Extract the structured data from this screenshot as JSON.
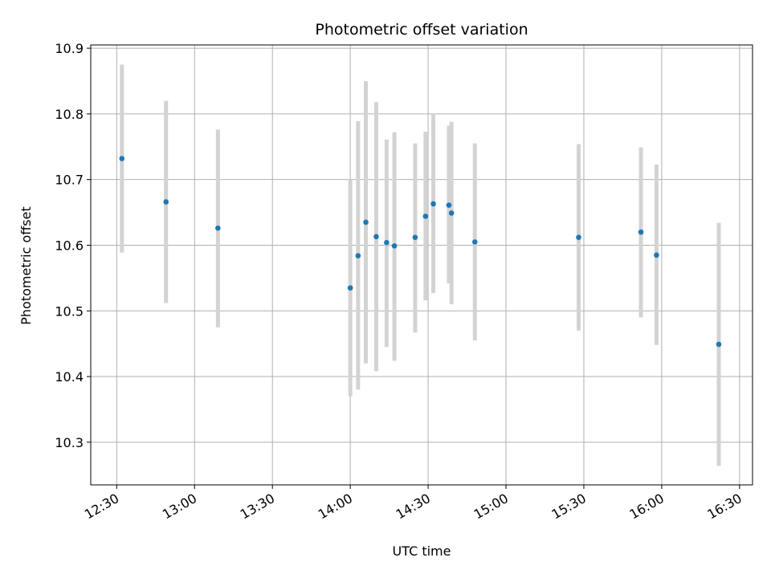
{
  "chart_data": {
    "type": "scatter",
    "title": "Photometric offset variation",
    "xlabel": "UTC time",
    "ylabel": "Photometric offset",
    "xlim": [
      "12:20",
      "16:35"
    ],
    "ylim": [
      10.235,
      10.905
    ],
    "grid": true,
    "x_ticks": [
      "12:30",
      "13:00",
      "13:30",
      "14:00",
      "14:30",
      "15:00",
      "15:30",
      "16:00",
      "16:30"
    ],
    "y_ticks": [
      "10.3",
      "10.4",
      "10.5",
      "10.6",
      "10.7",
      "10.8",
      "10.9"
    ],
    "colors": {
      "point": "#1f77b4",
      "errorbar": "#d3d3d3",
      "grid": "#b0b0b0",
      "axis": "#000000"
    },
    "series": [
      {
        "name": "Photometric offset",
        "x": [
          "12:32",
          "12:49",
          "13:09",
          "14:00",
          "14:03",
          "14:06",
          "14:10",
          "14:14",
          "14:17",
          "14:25",
          "14:29",
          "14:32",
          "14:38",
          "14:39",
          "14:48",
          "15:28",
          "15:52",
          "15:58",
          "16:22"
        ],
        "y": [
          10.732,
          10.666,
          10.626,
          10.535,
          10.584,
          10.635,
          10.613,
          10.604,
          10.599,
          10.612,
          10.644,
          10.663,
          10.661,
          10.649,
          10.605,
          10.612,
          10.62,
          10.585,
          10.449
        ],
        "yerr_low": [
          10.589,
          10.512,
          10.475,
          10.37,
          10.38,
          10.42,
          10.408,
          10.445,
          10.424,
          10.467,
          10.516,
          10.527,
          10.542,
          10.51,
          10.455,
          10.47,
          10.49,
          10.448,
          10.264
        ],
        "yerr_high": [
          10.875,
          10.82,
          10.776,
          10.7,
          10.789,
          10.85,
          10.818,
          10.761,
          10.772,
          10.755,
          10.773,
          10.8,
          10.782,
          10.788,
          10.755,
          10.754,
          10.749,
          10.723,
          10.634
        ]
      }
    ]
  }
}
